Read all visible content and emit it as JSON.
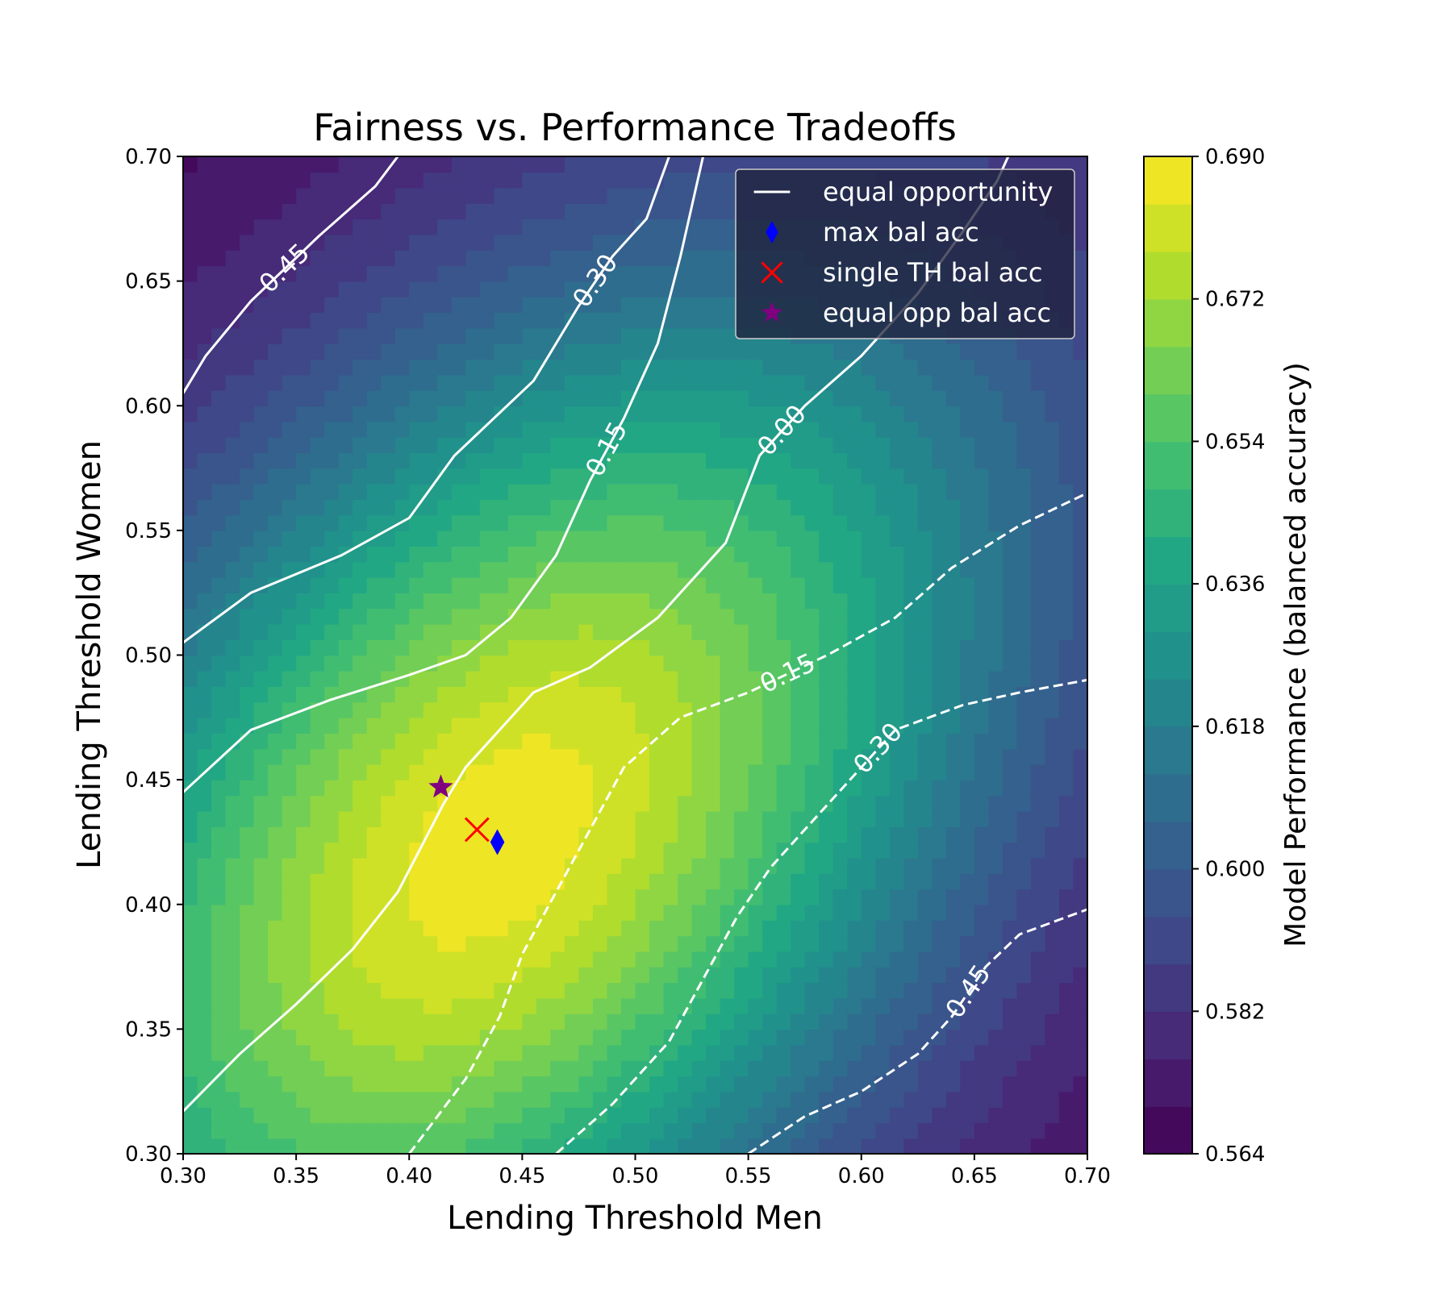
{
  "chart_data": {
    "type": "heatmap",
    "title": "Fairness vs. Performance Tradeoffs",
    "xlabel": "Lending Threshold Men",
    "ylabel": "Lending Threshold Women",
    "xlim": [
      0.3,
      0.7
    ],
    "ylim": [
      0.3,
      0.7
    ],
    "xticks": [
      "0.30",
      "0.35",
      "0.40",
      "0.45",
      "0.50",
      "0.55",
      "0.60",
      "0.65",
      "0.70"
    ],
    "yticks": [
      "0.30",
      "0.35",
      "0.40",
      "0.45",
      "0.50",
      "0.55",
      "0.60",
      "0.65",
      "0.70"
    ],
    "colorbar": {
      "label": "Model Performance (balanced accuracy)",
      "min": 0.564,
      "max": 0.69,
      "ticks": [
        "0.564",
        "0.582",
        "0.600",
        "0.618",
        "0.636",
        "0.654",
        "0.672",
        "0.690"
      ],
      "levels": 21,
      "colormap": "viridis"
    },
    "surface_peak": {
      "x": 0.44,
      "y": 0.425,
      "value": 0.688
    },
    "contours": [
      {
        "level": "0.45",
        "style": "solid",
        "points": [
          [
            0.3,
            0.605
          ],
          [
            0.3,
            0.605
          ],
          [
            0.31,
            0.62
          ],
          [
            0.33,
            0.642
          ],
          [
            0.36,
            0.668
          ],
          [
            0.385,
            0.688
          ],
          [
            0.395,
            0.7
          ]
        ]
      },
      {
        "level": "0.30",
        "style": "solid",
        "points": [
          [
            0.3,
            0.505
          ],
          [
            0.33,
            0.525
          ],
          [
            0.37,
            0.54
          ],
          [
            0.4,
            0.555
          ],
          [
            0.42,
            0.58
          ],
          [
            0.455,
            0.61
          ],
          [
            0.475,
            0.64
          ],
          [
            0.49,
            0.66
          ],
          [
            0.505,
            0.675
          ],
          [
            0.515,
            0.7
          ]
        ]
      },
      {
        "level": "0.15",
        "style": "solid",
        "points": [
          [
            0.3,
            0.445
          ],
          [
            0.33,
            0.47
          ],
          [
            0.365,
            0.482
          ],
          [
            0.4,
            0.492
          ],
          [
            0.425,
            0.5
          ],
          [
            0.445,
            0.515
          ],
          [
            0.465,
            0.54
          ],
          [
            0.48,
            0.57
          ],
          [
            0.495,
            0.595
          ],
          [
            0.51,
            0.625
          ],
          [
            0.52,
            0.66
          ],
          [
            0.53,
            0.7
          ]
        ]
      },
      {
        "level": "0.00",
        "style": "solid",
        "points": [
          [
            0.3,
            0.317
          ],
          [
            0.325,
            0.34
          ],
          [
            0.35,
            0.36
          ],
          [
            0.375,
            0.382
          ],
          [
            0.395,
            0.405
          ],
          [
            0.415,
            0.44
          ],
          [
            0.425,
            0.455
          ],
          [
            0.44,
            0.47
          ],
          [
            0.455,
            0.485
          ],
          [
            0.48,
            0.495
          ],
          [
            0.51,
            0.515
          ],
          [
            0.54,
            0.545
          ],
          [
            0.555,
            0.58
          ],
          [
            0.575,
            0.6
          ],
          [
            0.6,
            0.62
          ],
          [
            0.625,
            0.645
          ],
          [
            0.645,
            0.67
          ],
          [
            0.66,
            0.69
          ],
          [
            0.665,
            0.7
          ]
        ]
      },
      {
        "level": "0.15",
        "style": "dashed",
        "points": [
          [
            0.4,
            0.3
          ],
          [
            0.425,
            0.33
          ],
          [
            0.44,
            0.355
          ],
          [
            0.45,
            0.38
          ],
          [
            0.465,
            0.405
          ],
          [
            0.48,
            0.43
          ],
          [
            0.495,
            0.455
          ],
          [
            0.52,
            0.475
          ],
          [
            0.55,
            0.485
          ],
          [
            0.585,
            0.5
          ],
          [
            0.615,
            0.515
          ],
          [
            0.64,
            0.535
          ],
          [
            0.67,
            0.552
          ],
          [
            0.7,
            0.565
          ]
        ]
      },
      {
        "level": "0.30",
        "style": "dashed",
        "points": [
          [
            0.465,
            0.3
          ],
          [
            0.49,
            0.32
          ],
          [
            0.515,
            0.345
          ],
          [
            0.53,
            0.37
          ],
          [
            0.545,
            0.395
          ],
          [
            0.56,
            0.415
          ],
          [
            0.58,
            0.435
          ],
          [
            0.6,
            0.455
          ],
          [
            0.615,
            0.47
          ],
          [
            0.645,
            0.48
          ],
          [
            0.67,
            0.485
          ],
          [
            0.7,
            0.49
          ]
        ]
      },
      {
        "level": "0.45",
        "style": "dashed",
        "points": [
          [
            0.55,
            0.3
          ],
          [
            0.575,
            0.315
          ],
          [
            0.6,
            0.325
          ],
          [
            0.625,
            0.34
          ],
          [
            0.64,
            0.355
          ],
          [
            0.655,
            0.375
          ],
          [
            0.67,
            0.388
          ],
          [
            0.7,
            0.398
          ]
        ]
      }
    ],
    "markers": [
      {
        "label": "max bal acc",
        "x": 0.439,
        "y": 0.425,
        "shape": "diamond",
        "color": "#0000ff"
      },
      {
        "label": "single TH bal acc",
        "x": 0.43,
        "y": 0.43,
        "shape": "x",
        "color": "#ff0000"
      },
      {
        "label": "equal opp bal acc",
        "x": 0.414,
        "y": 0.447,
        "shape": "star",
        "color": "#800080"
      }
    ],
    "legend": {
      "position": "top-right",
      "entries": [
        {
          "label": "equal opportunity",
          "shape": "line",
          "color": "#ffffff"
        },
        {
          "label": "max bal acc",
          "shape": "diamond",
          "color": "#0000ff"
        },
        {
          "label": "single TH bal acc",
          "shape": "x",
          "color": "#ff0000"
        },
        {
          "label": "equal opp bal acc",
          "shape": "star",
          "color": "#800080"
        }
      ]
    }
  }
}
